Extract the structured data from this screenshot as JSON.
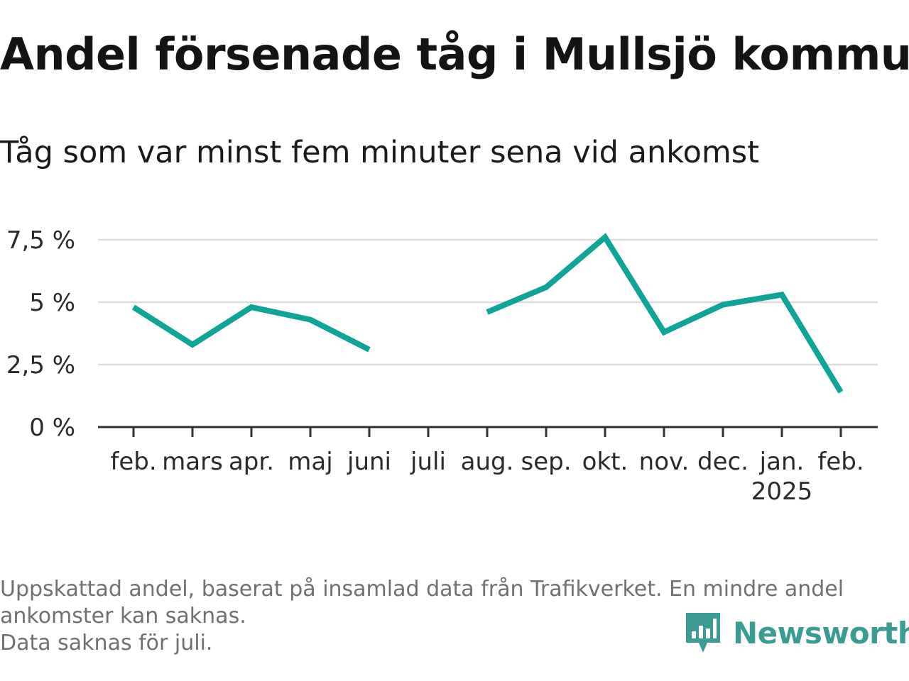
{
  "header": {
    "title": "Andel försenade tåg i Mullsjö kommun",
    "subtitle": "Tåg som var minst fem minuter sena vid ankomst"
  },
  "chart_data": {
    "type": "line",
    "categories": [
      "feb.",
      "mars",
      "apr.",
      "maj",
      "juni",
      "juli",
      "aug.",
      "sep.",
      "okt.",
      "nov.",
      "dec.",
      "jan.",
      "feb."
    ],
    "category_sublabels": [
      "",
      "",
      "",
      "",
      "",
      "",
      "",
      "",
      "",
      "",
      "",
      "2025",
      ""
    ],
    "series": [
      {
        "values": [
          4.8,
          3.3,
          4.8,
          4.3,
          3.1,
          null,
          4.6,
          5.6,
          7.6,
          3.8,
          4.9,
          5.3,
          1.4
        ],
        "color": "#0fa497"
      }
    ],
    "yticks": [
      0,
      2.5,
      5,
      7.5
    ],
    "ytick_labels": [
      "0 %",
      "2,5 %",
      "5 %",
      "7,5 %"
    ],
    "ylim": [
      0,
      7.5
    ],
    "grid": true,
    "xlabel": "",
    "ylabel": ""
  },
  "footer": {
    "notes": [
      "Uppskattad andel, baserat på insamlad data från Trafikverket. En mindre andel",
      "ankomster kan saknas.",
      "Data saknas för juli."
    ]
  },
  "brand": {
    "name": "Newsworthy",
    "icon": "newsworthy-logo-icon",
    "color": "#3a9c93"
  }
}
